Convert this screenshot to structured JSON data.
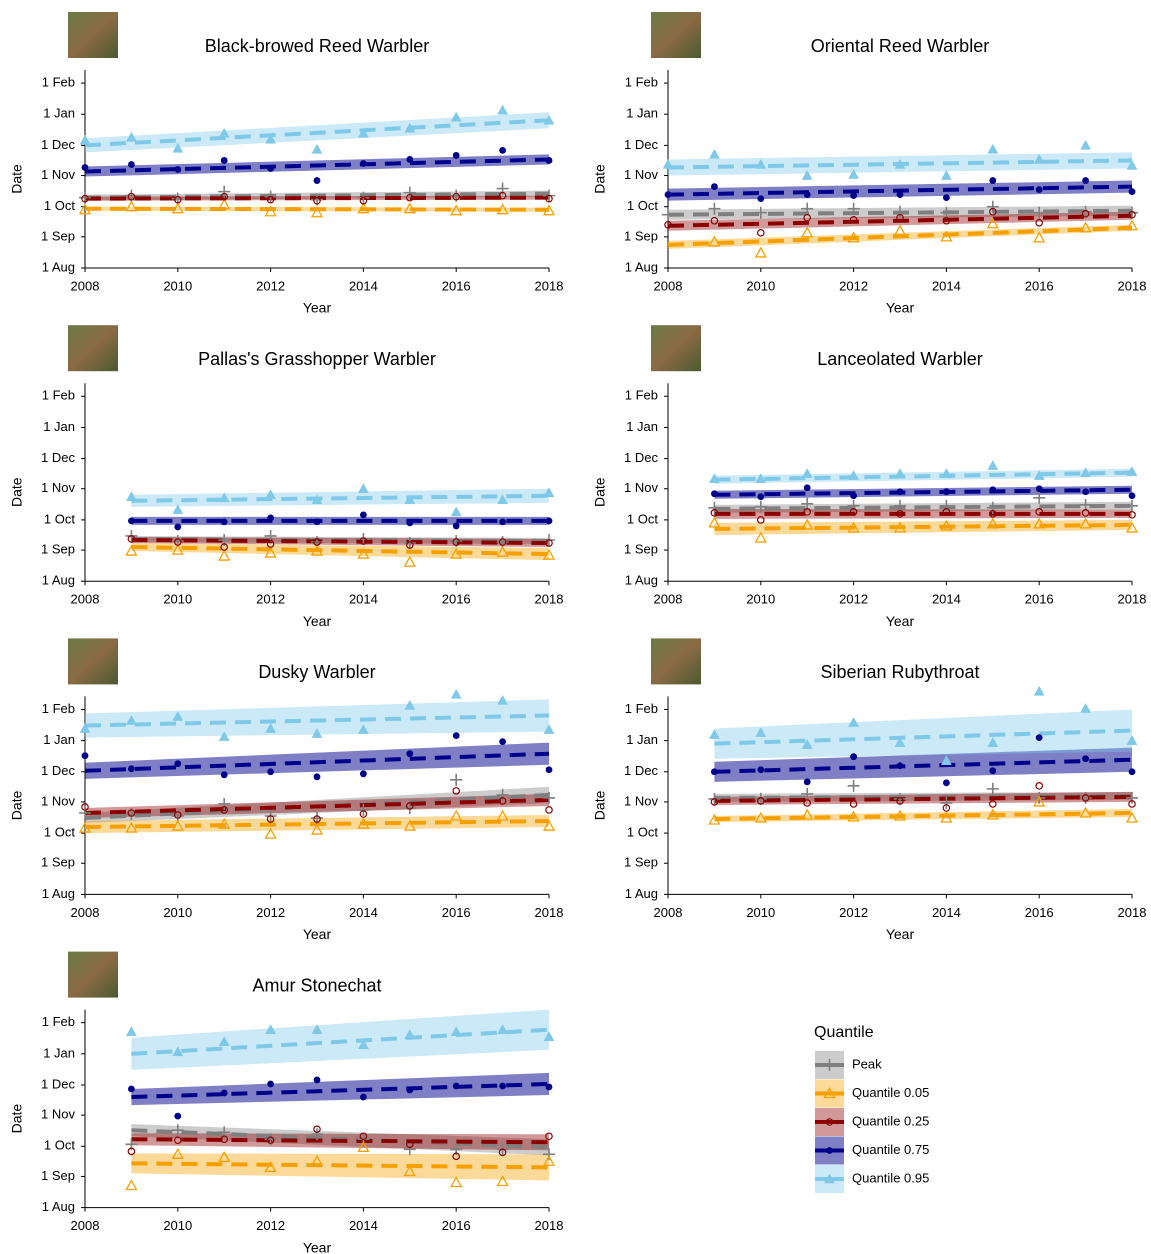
{
  "chart_data": {
    "type": "scatter",
    "x_label": "Year",
    "y_label": "Date",
    "x": [
      2008,
      2009,
      2010,
      2011,
      2012,
      2013,
      2014,
      2015,
      2016,
      2017,
      2018
    ],
    "xlim": [
      2008,
      2018
    ],
    "xticks": [
      2008,
      2010,
      2012,
      2014,
      2016,
      2018
    ],
    "ylim": [
      213,
      410
    ],
    "yticks": [
      {
        "value": 213,
        "label": "1 Aug"
      },
      {
        "value": 244,
        "label": "1 Sep"
      },
      {
        "value": 274,
        "label": "1 Oct"
      },
      {
        "value": 305,
        "label": "1 Nov"
      },
      {
        "value": 335,
        "label": "1 Dec"
      },
      {
        "value": 366,
        "label": "1 Jan"
      },
      {
        "value": 397,
        "label": "1 Feb"
      }
    ],
    "legend_title": "Quantile",
    "series": [
      {
        "name": "Peak",
        "color": "#7f7f7f",
        "marker": "plus"
      },
      {
        "name": "Quantile 0.05",
        "color": "#f5a000",
        "marker": "triangle-open"
      },
      {
        "name": "Quantile 0.25",
        "color": "#8b0000",
        "marker": "circle-open"
      },
      {
        "name": "Quantile 0.75",
        "color": "#00008b",
        "marker": "circle"
      },
      {
        "name": "Quantile 0.95",
        "color": "#7ec8e8",
        "marker": "triangle"
      }
    ],
    "panels": [
      {
        "title": "Black-browed Reed Warbler",
        "fit_x": [
          2008,
          2018
        ],
        "series": [
          {
            "values": [
              283,
              285,
              282,
              289,
              284,
              281,
              283,
              288,
              285,
              292,
              285
            ],
            "fit": [
              283,
              287
            ],
            "lower": [
              280,
              284
            ],
            "upper": [
              286,
              290
            ]
          },
          {
            "values": [
              271,
              274,
              272,
              276,
              269,
              268,
              272,
              272,
              270,
              271,
              270
            ],
            "fit": [
              272,
              271
            ],
            "lower": [
              270,
              269
            ],
            "upper": [
              274,
              273
            ]
          },
          {
            "values": [
              282,
              284,
              281,
              284,
              281,
              280,
              280,
              283,
              284,
              285,
              282
            ],
            "fit": [
              282,
              283
            ],
            "lower": [
              280,
              281
            ],
            "upper": [
              284,
              285
            ]
          },
          {
            "values": [
              313,
              316,
              311,
              320,
              312,
              300,
              317,
              321,
              325,
              330,
              320
            ],
            "fit": [
              309,
              321
            ],
            "lower": [
              304,
              316
            ],
            "upper": [
              314,
              326
            ]
          },
          {
            "values": [
              340,
              343,
              332,
              347,
              341,
              331,
              347,
              352,
              363,
              370,
              360
            ],
            "fit": [
              335,
              360
            ],
            "lower": [
              328,
              352
            ],
            "upper": [
              342,
              368
            ]
          }
        ]
      },
      {
        "title": "Oriental Reed Warbler",
        "fit_x": [
          2008,
          2018
        ],
        "series": [
          {
            "values": [
              266,
              272,
              268,
              272,
              272,
              269,
              268,
              274,
              268,
              269,
              268
            ],
            "fit": [
              266,
              270
            ],
            "lower": [
              261,
              265
            ],
            "upper": [
              271,
              275
            ]
          },
          {
            "values": [
              null,
              239,
              228,
              248,
              243,
              250,
              244,
              257,
              243,
              253,
              255
            ],
            "fit": [
              236,
              253
            ],
            "lower": [
              232,
              250
            ],
            "upper": [
              240,
              256
            ]
          },
          {
            "values": [
              256,
              260,
              248,
              263,
              261,
              263,
              260,
              269,
              258,
              267,
              266
            ],
            "fit": [
              255,
              265
            ],
            "lower": [
              250,
              261
            ],
            "upper": [
              260,
              269
            ]
          },
          {
            "values": [
              286,
              294,
              282,
              286,
              285,
              286,
              283,
              300,
              291,
              300,
              289
            ],
            "fit": [
              286,
              294
            ],
            "lower": [
              280,
              288
            ],
            "upper": [
              292,
              300
            ]
          },
          {
            "values": [
              316,
              326,
              316,
              305,
              306,
              316,
              305,
              331,
              321,
              335,
              315
            ],
            "fit": [
              313,
              320
            ],
            "lower": [
              305,
              312
            ],
            "upper": [
              321,
              328
            ]
          }
        ]
      },
      {
        "title": "Pallas's Grasshopper Warbler",
        "fit_x": [
          2009,
          2018
        ],
        "series": [
          {
            "values": [
              null,
              258,
              253,
              254,
              258,
              252,
              255,
              251,
              253,
              252,
              254
            ],
            "fit": [
              255,
              253
            ],
            "lower": [
              252,
              250
            ],
            "upper": [
              258,
              256
            ]
          },
          {
            "values": [
              null,
              243,
              244,
              238,
              241,
              243,
              240,
              232,
              240,
              242,
              239
            ],
            "fit": [
              247,
              240
            ],
            "lower": [
              243,
              234
            ],
            "upper": [
              251,
              246
            ]
          },
          {
            "values": [
              null,
              255,
              252,
              247,
              250,
              252,
              253,
              249,
              252,
              252,
              251
            ],
            "fit": [
              254,
              251
            ],
            "lower": [
              251,
              247
            ],
            "upper": [
              257,
              255
            ]
          },
          {
            "values": [
              null,
              273,
              267,
              272,
              276,
              272,
              279,
              271,
              268,
              272,
              273
            ],
            "fit": [
              273,
              273
            ],
            "lower": [
              269,
              269
            ],
            "upper": [
              277,
              277
            ]
          },
          {
            "values": [
              null,
              297,
              284,
              296,
              299,
              294,
              305,
              294,
              282,
              294,
              301
            ],
            "fit": [
              293,
              298
            ],
            "lower": [
              287,
              291
            ],
            "upper": [
              299,
              305
            ]
          }
        ]
      },
      {
        "title": "Lanceolated Warbler",
        "fit_x": [
          2009,
          2018
        ],
        "series": [
          {
            "values": [
              null,
              286,
              287,
              290,
              288,
              288,
              288,
              286,
              296,
              289,
              288
            ],
            "fit": [
              285,
              288
            ],
            "lower": [
              281,
              284
            ],
            "upper": [
              289,
              292
            ]
          },
          {
            "values": [
              null,
              271,
              256,
              269,
              266,
              266,
              268,
              270,
              270,
              270,
              266
            ],
            "fit": [
              265,
              269
            ],
            "lower": [
              259,
              264
            ],
            "upper": [
              271,
              274
            ]
          },
          {
            "values": [
              null,
              281,
              274,
              282,
              282,
              280,
              282,
              280,
              282,
              281,
              279
            ],
            "fit": [
              280,
              280
            ],
            "lower": [
              275,
              276
            ],
            "upper": [
              285,
              284
            ]
          },
          {
            "values": [
              null,
              300,
              297,
              306,
              298,
              302,
              302,
              304,
              305,
              302,
              298
            ],
            "fit": [
              299,
              304
            ],
            "lower": [
              295,
              300
            ],
            "upper": [
              303,
              308
            ]
          },
          {
            "values": [
              null,
              315,
              315,
              320,
              318,
              320,
              320,
              328,
              318,
              321,
              322
            ],
            "fit": [
              314,
              321
            ],
            "lower": [
              310,
              317
            ],
            "upper": [
              318,
              325
            ]
          }
        ]
      },
      {
        "title": "Dusky Warbler",
        "fit_x": [
          2008,
          2018
        ],
        "series": [
          {
            "values": [
              294,
              293,
              291,
              303,
              291,
              289,
              297,
              299,
              327,
              312,
              309
            ],
            "fit": [
              289,
              312
            ],
            "lower": [
              284,
              304
            ],
            "upper": [
              294,
              320
            ]
          },
          {
            "values": [
              279,
              279,
              281,
              283,
              273,
              277,
              283,
              281,
              291,
              291,
              281
            ],
            "fit": [
              280,
              286
            ],
            "lower": [
              274,
              280
            ],
            "upper": [
              286,
              292
            ]
          },
          {
            "values": [
              300,
              294,
              292,
              297,
              288,
              288,
              293,
              301,
              316,
              306,
              297
            ],
            "fit": [
              294,
              307
            ],
            "lower": [
              289,
              301
            ],
            "upper": [
              299,
              313
            ]
          },
          {
            "values": [
              351,
              338,
              343,
              332,
              335,
              330,
              333,
              353,
              371,
              365,
              337
            ],
            "fit": [
              336,
              353
            ],
            "lower": [
              328,
              342
            ],
            "upper": [
              344,
              364
            ]
          },
          {
            "values": [
              378,
              386,
              390,
              370,
              378,
              373,
              377,
              401,
              412,
              406,
              377
            ],
            "fit": [
              381,
              391
            ],
            "lower": [
              369,
              375
            ],
            "upper": [
              393,
              407
            ]
          }
        ]
      },
      {
        "title": "Siberian Rubythroat",
        "fit_x": [
          2009,
          2018
        ],
        "series": [
          {
            "values": [
              null,
              308,
              308,
              313,
              321,
              308,
              304,
              318,
              309,
              309,
              309
            ],
            "fit": [
              309,
              311
            ],
            "lower": [
              305,
              307
            ],
            "upper": [
              313,
              315
            ]
          },
          {
            "values": [
              null,
              287,
              289,
              292,
              290,
              291,
              289,
              292,
              305,
              294,
              289
            ],
            "fit": [
              288,
              294
            ],
            "lower": [
              285,
              290
            ],
            "upper": [
              291,
              298
            ]
          },
          {
            "values": [
              null,
              305,
              306,
              304,
              303,
              306,
              299,
              303,
              321,
              309,
              303
            ],
            "fit": [
              306,
              310
            ],
            "lower": [
              302,
              305
            ],
            "upper": [
              310,
              315
            ]
          },
          {
            "values": [
              null,
              335,
              337,
              325,
              350,
              341,
              324,
              336,
              369,
              348,
              335
            ],
            "fit": [
              335,
              347
            ],
            "lower": [
              325,
              335
            ],
            "upper": [
              345,
              359
            ]
          },
          {
            "values": [
              null,
              372,
              374,
              362,
              384,
              364,
              346,
              364,
              415,
              398,
              366
            ],
            "fit": [
              363,
              376
            ],
            "lower": [
              348,
              355
            ],
            "upper": [
              378,
              397
            ]
          }
        ]
      },
      {
        "title": "Amur Stonechat",
        "fit_x": [
          2009,
          2018
        ],
        "series": [
          {
            "values": [
              null,
              276,
              290,
              288,
              281,
              286,
              281,
              271,
              271,
              271,
              266
            ],
            "fit": [
              290,
              273
            ],
            "lower": [
              284,
              265
            ],
            "upper": [
              296,
              281
            ]
          },
          {
            "values": [
              null,
              235,
              266,
              263,
              253,
              259,
              273,
              249,
              238,
              239,
              259
            ],
            "fit": [
              257,
              253
            ],
            "lower": [
              247,
              240
            ],
            "upper": [
              267,
              266
            ]
          },
          {
            "values": [
              null,
              269,
              280,
              281,
              280,
              291,
              284,
              276,
              264,
              268,
              284
            ],
            "fit": [
              281,
              278
            ],
            "lower": [
              275,
              270
            ],
            "upper": [
              287,
              286
            ]
          },
          {
            "values": [
              null,
              331,
              304,
              327,
              336,
              340,
              323,
              330,
              334,
              334,
              333
            ],
            "fit": [
              323,
              336
            ],
            "lower": [
              315,
              325
            ],
            "upper": [
              331,
              347
            ]
          },
          {
            "values": [
              null,
              388,
              368,
              378,
              390,
              390,
              375,
              385,
              388,
              390,
              383
            ],
            "fit": [
              366,
              390
            ],
            "lower": [
              350,
              370
            ],
            "upper": [
              382,
              410
            ]
          }
        ]
      }
    ]
  }
}
